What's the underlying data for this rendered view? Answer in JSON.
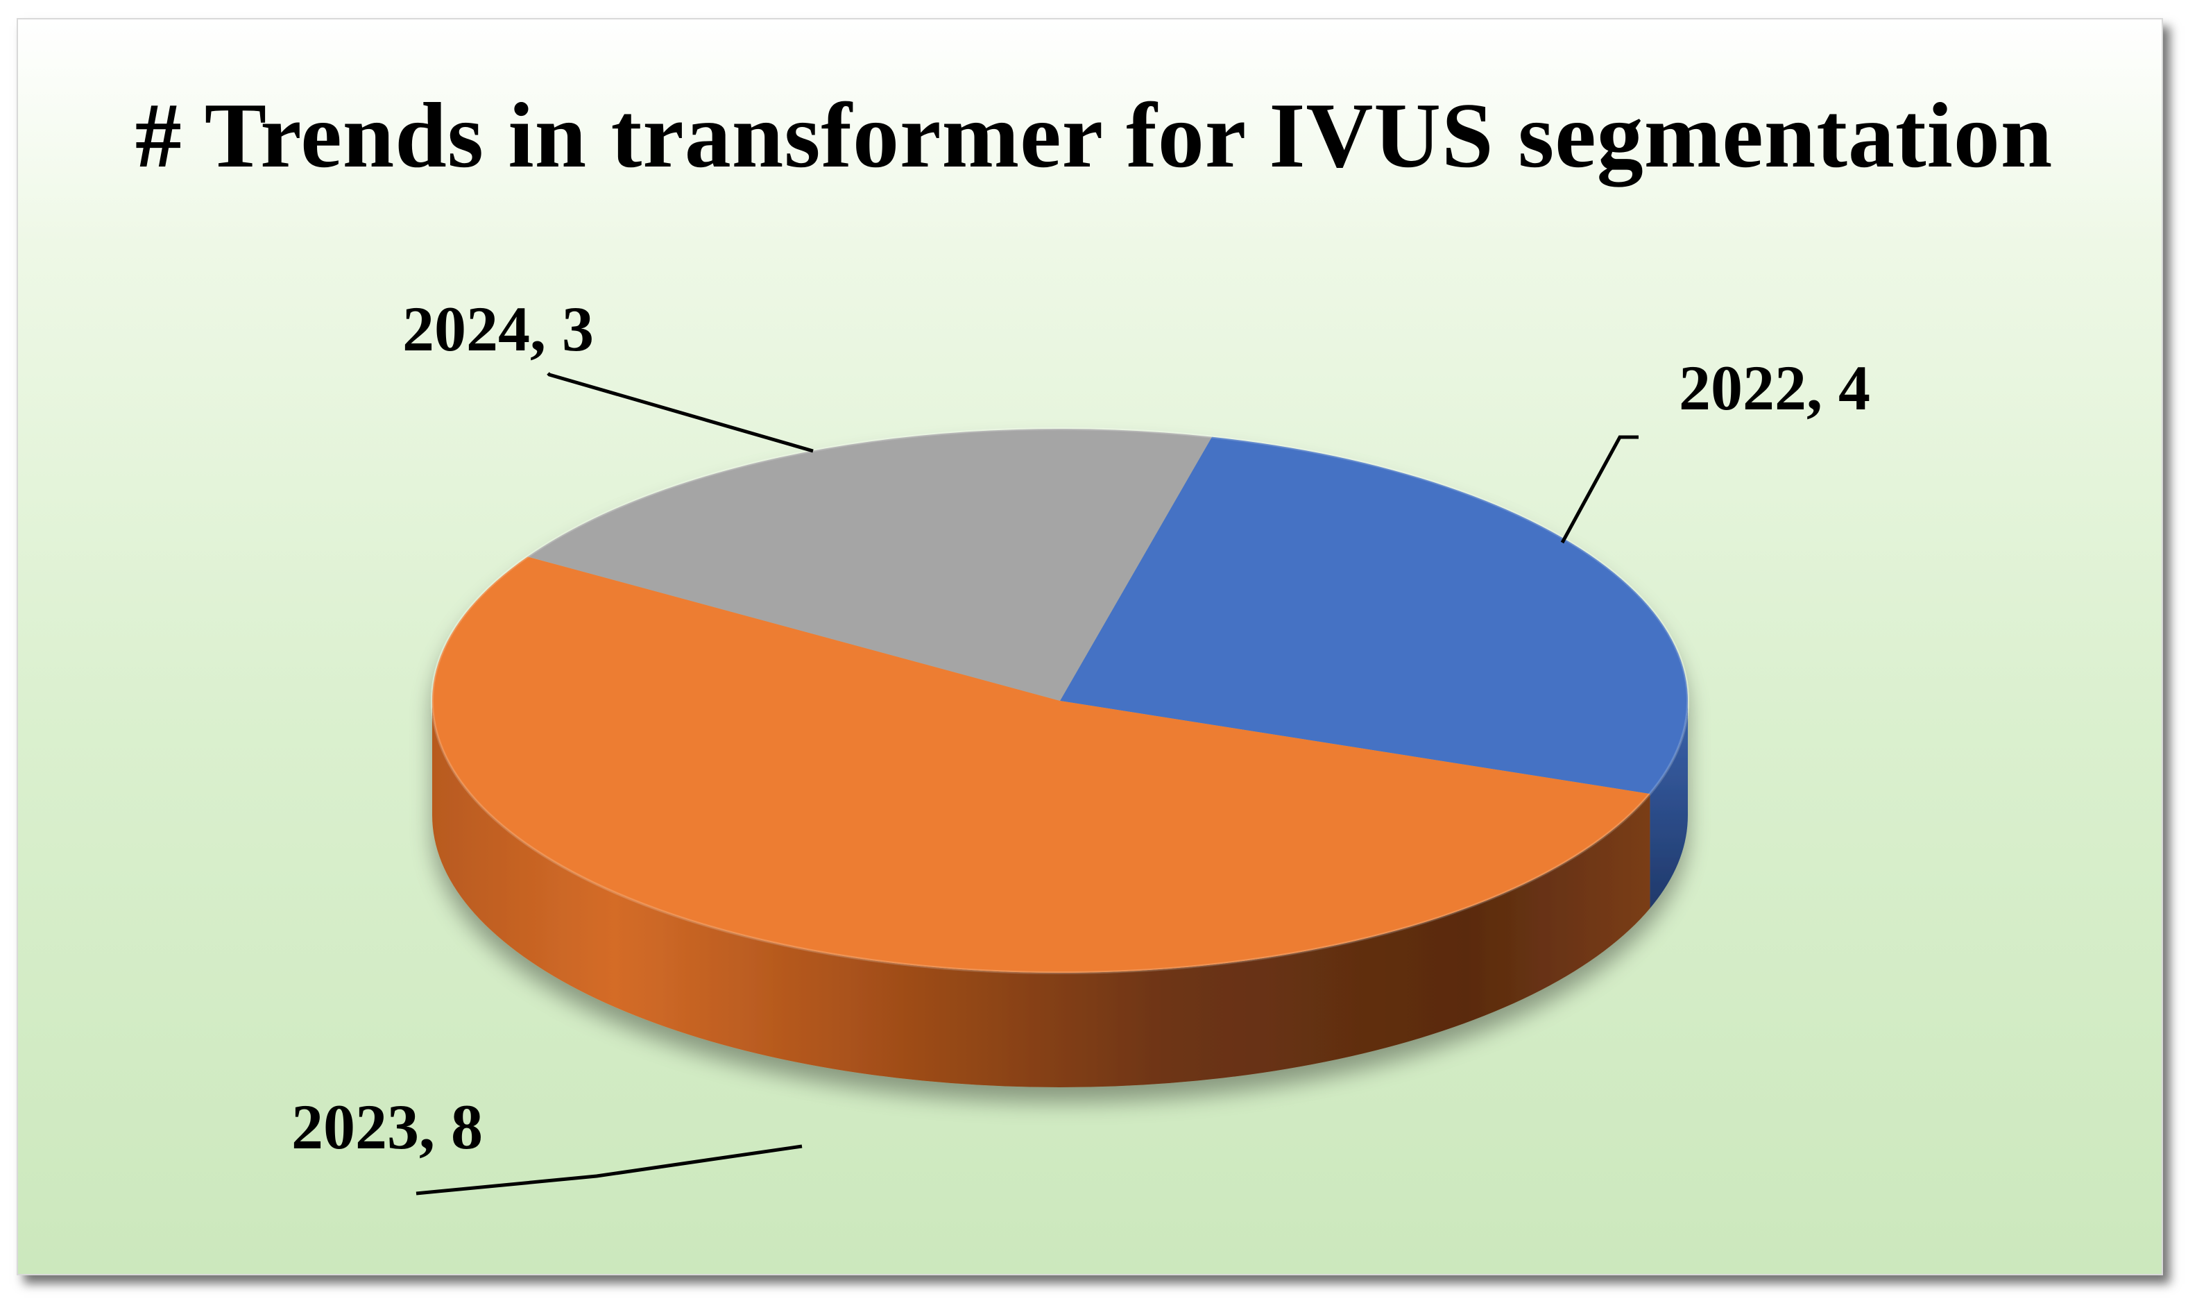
{
  "chart_data": {
    "type": "pie",
    "title": "# Trends in transformer for IVUS segmentation",
    "categories": [
      "2022",
      "2023",
      "2024"
    ],
    "values": [
      4,
      8,
      3
    ],
    "colors": [
      "#4472c4",
      "#ed7d31",
      "#a5a5a5"
    ],
    "data_labels": [
      "2022, 4",
      "2023, 8",
      "2024, 3"
    ],
    "style": "3d",
    "legend": "none"
  }
}
